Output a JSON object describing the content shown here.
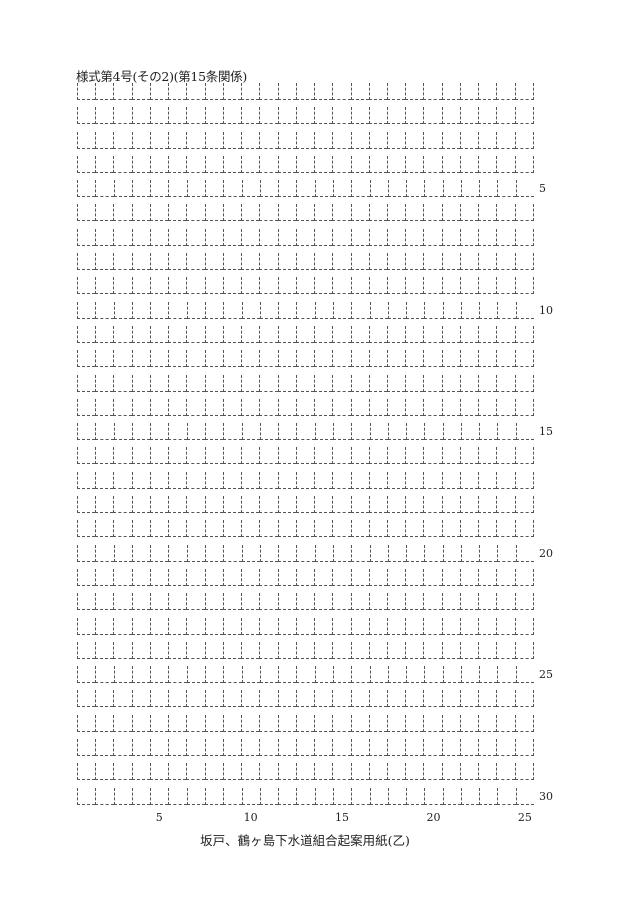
{
  "title": "様式第4号(その2)(第15条関係)",
  "grid": {
    "columns": 25,
    "rows": 30
  },
  "row_labels": [
    {
      "row": 5,
      "label": "5"
    },
    {
      "row": 10,
      "label": "10"
    },
    {
      "row": 15,
      "label": "15"
    },
    {
      "row": 20,
      "label": "20"
    },
    {
      "row": 25,
      "label": "25"
    },
    {
      "row": 30,
      "label": "30"
    }
  ],
  "column_labels": [
    {
      "col": 5,
      "label": "5"
    },
    {
      "col": 10,
      "label": "10"
    },
    {
      "col": 15,
      "label": "15"
    },
    {
      "col": 20,
      "label": "20"
    },
    {
      "col": 25,
      "label": "25"
    }
  ],
  "footer": "坂戸、鶴ヶ島下水道組合起案用紙(乙)"
}
